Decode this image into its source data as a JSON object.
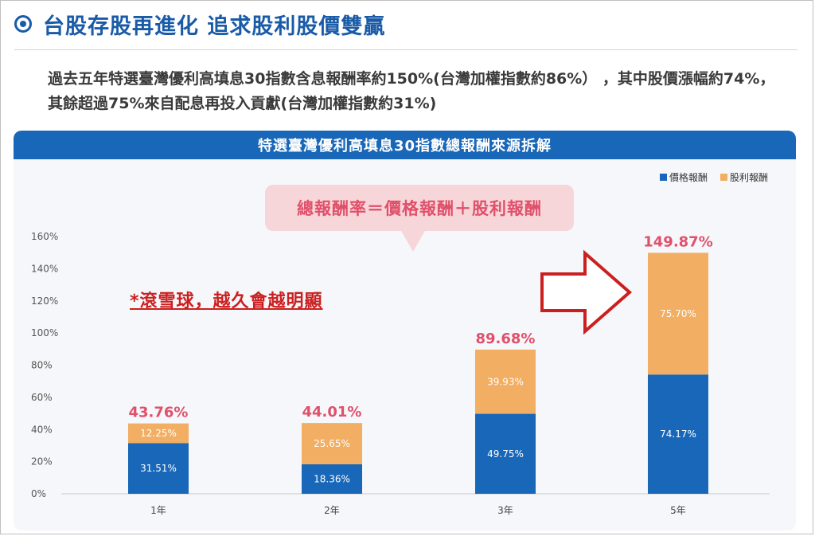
{
  "header": {
    "icon": "bullseye-icon",
    "title": "台股存股再進化 追求股利股價雙贏"
  },
  "intro_text": "過去五年特選臺灣優利高填息30指數含息報酬率約150%(台灣加權指數約86%） ，其中股價漲幅約74%，其餘超過75%來自配息再投入貢獻(台灣加權指數約31%)",
  "chart_banner": "特選臺灣優利高填息30指數總報酬來源拆解",
  "formula": "總報酬率＝價格報酬＋股利報酬",
  "snowball_note": "*滾雪球，越久會越明顯",
  "arrow_icon": "right-arrow-outline-icon",
  "colors": {
    "price": "#1967b8",
    "dividend": "#f2ae63",
    "total_label": "#e0506b",
    "banner": "#1967b8",
    "arrow": "#cc1f1f"
  },
  "chart_data": {
    "type": "bar",
    "stacked": true,
    "categories": [
      "1年",
      "2年",
      "3年",
      "5年"
    ],
    "series": [
      {
        "name": "價格報酬",
        "values": [
          31.51,
          18.36,
          49.75,
          74.17
        ],
        "labels": [
          "31.51%",
          "18.36%",
          "49.75%",
          "74.17%"
        ]
      },
      {
        "name": "股利報酬",
        "values": [
          12.25,
          25.65,
          39.93,
          75.7
        ],
        "labels": [
          "12.25%",
          "25.65%",
          "39.93%",
          "75.70%"
        ]
      }
    ],
    "totals": [
      43.76,
      44.01,
      89.68,
      149.87
    ],
    "total_labels": [
      "43.76%",
      "44.01%",
      "89.68%",
      "149.87%"
    ],
    "ylim": [
      0,
      160
    ],
    "y_ticks": [
      "0%",
      "20%",
      "40%",
      "60%",
      "80%",
      "100%",
      "120%",
      "140%",
      "160%"
    ],
    "y_tick_values": [
      0,
      20,
      40,
      60,
      80,
      100,
      120,
      140,
      160
    ],
    "legend_position": "top-right",
    "grid": false
  }
}
